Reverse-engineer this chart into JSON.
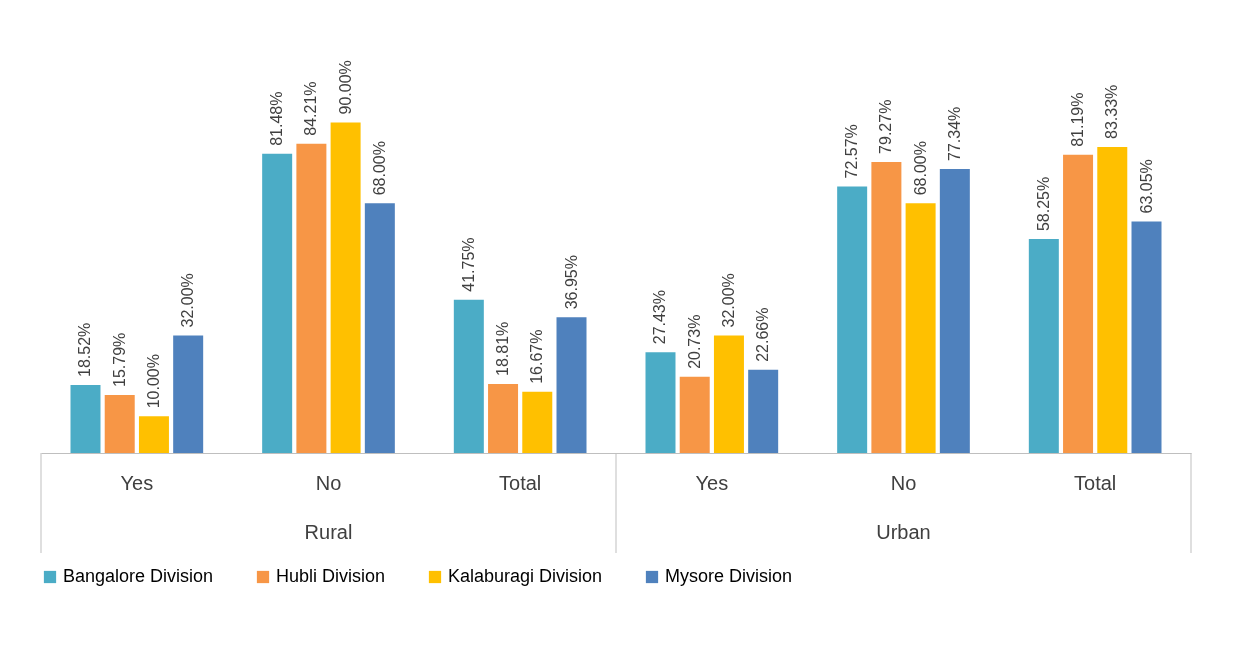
{
  "chart_data": {
    "type": "bar",
    "categories": [
      "Yes",
      "No",
      "Total",
      "Yes",
      "No",
      "Total"
    ],
    "series": [
      {
        "name": "Bangalore Division",
        "color": "#4bacc6",
        "values": [
          18.52,
          81.48,
          41.75,
          27.43,
          72.57,
          58.25
        ],
        "value_labels": [
          "18.52%",
          "81.48%",
          "41.75%",
          "27.43%",
          "72.57%",
          "58.25%"
        ]
      },
      {
        "name": "Hubli Division",
        "color": "#f79646",
        "values": [
          15.79,
          84.21,
          18.81,
          20.73,
          79.27,
          81.19
        ],
        "value_labels": [
          "15.79%",
          "84.21%",
          "18.81%",
          "20.73%",
          "79.27%",
          "81.19%"
        ]
      },
      {
        "name": "Kalaburagi Division",
        "color": "#ffc000",
        "values": [
          10.0,
          90.0,
          16.67,
          32.0,
          68.0,
          83.33
        ],
        "value_labels": [
          "10.00%",
          "90.00%",
          "16.67%",
          "32.00%",
          "68.00%",
          "83.33%"
        ]
      },
      {
        "name": "Mysore Division",
        "color": "#4f81bd",
        "values": [
          32.0,
          68.0,
          36.95,
          22.66,
          77.34,
          63.05
        ],
        "value_labels": [
          "32.00%",
          "68.00%",
          "36.95%",
          "22.66%",
          "77.34%",
          "63.05%"
        ]
      }
    ],
    "annotations": [
      "Rural",
      "Urban"
    ],
    "legend": "bottom",
    "grid": false
  }
}
